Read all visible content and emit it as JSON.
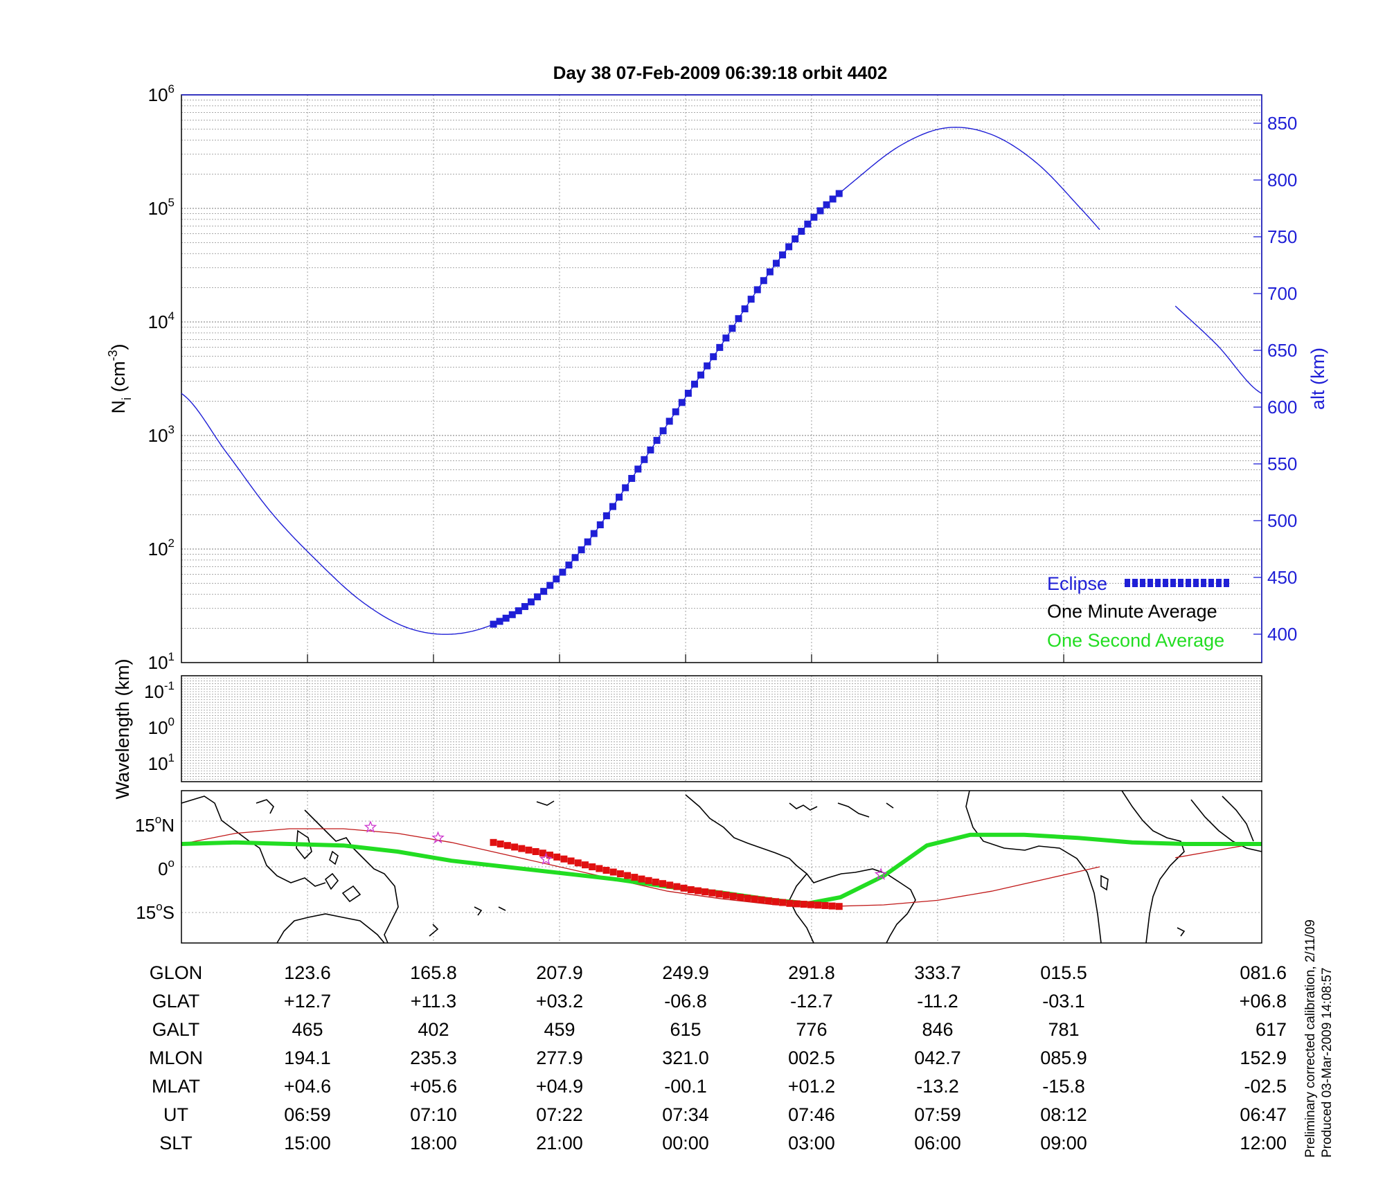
{
  "chart_data": [
    {
      "type": "line",
      "title": "Day 38  07-Feb-2009 06:39:18   orbit 4402",
      "ylabel_left": "N",
      "ylabel_left_sub": "i",
      "ylabel_left_unit": "(cm",
      "ylabel_left_unit_exp": "-3",
      "ylabel_left_unit_close": ")",
      "ylabel_right": "alt (km)",
      "y_left_scale": "log",
      "ylim_left": [
        10,
        1000000
      ],
      "y_left_ticks": [
        {
          "base": "10",
          "exp": "1"
        },
        {
          "base": "10",
          "exp": "2"
        },
        {
          "base": "10",
          "exp": "3"
        },
        {
          "base": "10",
          "exp": "4"
        },
        {
          "base": "10",
          "exp": "5"
        },
        {
          "base": "10",
          "exp": "6"
        }
      ],
      "ylim_right": [
        375,
        875
      ],
      "y_right_ticks": [
        "400",
        "450",
        "500",
        "550",
        "600",
        "650",
        "700",
        "750",
        "800",
        "850"
      ],
      "grid": true,
      "legend_position": "bottom-right",
      "legend": [
        {
          "label": "Eclipse",
          "color": "#1f1fd6"
        },
        {
          "label": "One Minute Average",
          "color": "#000000"
        },
        {
          "label": "One Second Average",
          "color": "#22dd22"
        }
      ],
      "series": [
        {
          "name": "alt",
          "color": "#1f1fd6",
          "x_frac": [
            0.0,
            0.0417,
            0.0833,
            0.125,
            0.1667,
            0.2083,
            0.25,
            0.2917,
            0.3333,
            0.375,
            0.4167,
            0.4583,
            0.5,
            0.5417,
            0.5833,
            0.625,
            0.6667,
            0.7083,
            0.75,
            0.7917,
            0.8333,
            0.875,
            0.9167,
            0.9583,
            1.0
          ],
          "y": [
            612,
            560,
            507,
            465,
            429,
            406,
            400,
            410,
            436,
            480,
            537,
            597,
            655,
            715,
            765,
            801,
            831,
            846,
            840,
            815,
            774,
            730,
            692,
            655,
            612
          ],
          "gap": [
            0.85,
            0.92
          ]
        }
      ],
      "eclipse_range_frac": [
        0.2888,
        0.6088
      ]
    },
    {
      "type": "heatmap",
      "ylabel": "Wavelength (km)",
      "y_ticks": [
        {
          "base": "10",
          "exp": "-1"
        },
        {
          "base": "10",
          "exp": "0"
        },
        {
          "base": "10",
          "exp": "1"
        }
      ]
    },
    {
      "type": "map",
      "y_ticks": [
        {
          "value": "15",
          "deg": "o",
          "hemi": "N"
        },
        {
          "value": "0",
          "deg": "o",
          "hemi": ""
        },
        {
          "value": "15",
          "deg": "o",
          "hemi": "S"
        }
      ],
      "ylim": [
        -25,
        25
      ],
      "one_second_track": {
        "x_frac": [
          0.0,
          0.05,
          0.1,
          0.15,
          0.2,
          0.25,
          0.3,
          0.35,
          0.4,
          0.45,
          0.5,
          0.55,
          0.58,
          0.61,
          0.65,
          0.69,
          0.73,
          0.78,
          0.83,
          0.88,
          0.93,
          0.97,
          1.0
        ],
        "lat": [
          7.5,
          8,
          7.5,
          7,
          5,
          2,
          0,
          -2,
          -4,
          -6.5,
          -8.5,
          -11,
          -12,
          -10,
          -3,
          7,
          10.5,
          10.5,
          9.5,
          8,
          7.5,
          7.5,
          7.5
        ]
      },
      "orbit_track": {
        "x_frac": [
          0.0,
          0.05,
          0.1,
          0.15,
          0.2,
          0.25,
          0.3,
          0.35,
          0.4,
          0.45,
          0.5,
          0.55,
          0.6,
          0.65,
          0.7,
          0.75,
          0.8,
          0.85,
          0.92,
          1.0
        ],
        "lat": [
          7.5,
          11,
          12.5,
          12.5,
          11,
          8,
          4,
          0,
          -4,
          -8,
          -10.5,
          -12.5,
          -13,
          -12.5,
          -11,
          -8,
          -4,
          0,
          3,
          8
        ]
      },
      "eclipse_track": {
        "x_frac_start": 0.2888,
        "x_frac_end": 0.6088,
        "lat": [
          8,
          4.5,
          0,
          -4,
          -7.5,
          -10,
          -12,
          -13
        ]
      },
      "stars": [
        {
          "x_frac": 0.175,
          "lat": 13
        },
        {
          "x_frac": 0.2375,
          "lat": 9.5
        },
        {
          "x_frac": 0.3375,
          "lat": 2.5
        },
        {
          "x_frac": 0.6475,
          "lat": -2.5
        }
      ]
    }
  ],
  "table": {
    "x_frac": [
      0.1167,
      0.2333,
      0.35,
      0.4667,
      0.5833,
      0.7,
      0.8167,
      1.0
    ],
    "rows": [
      {
        "label": "GLON",
        "values": [
          "123.6",
          "165.8",
          "207.9",
          "249.9",
          "291.8",
          "333.7",
          "015.5",
          "081.6"
        ]
      },
      {
        "label": "GLAT",
        "values": [
          "+12.7",
          "+11.3",
          "+03.2",
          "-06.8",
          "-12.7",
          "-11.2",
          "-03.1",
          "+06.8"
        ]
      },
      {
        "label": "GALT",
        "values": [
          "465",
          "402",
          "459",
          "615",
          "776",
          "846",
          "781",
          "617"
        ]
      },
      {
        "label": "MLON",
        "values": [
          "194.1",
          "235.3",
          "277.9",
          "321.0",
          "002.5",
          "042.7",
          "085.9",
          "152.9"
        ]
      },
      {
        "label": "MLAT",
        "values": [
          "+04.6",
          "+05.6",
          "+04.9",
          "-00.1",
          "+01.2",
          "-13.2",
          "-15.8",
          "-02.5"
        ]
      },
      {
        "label": "UT",
        "values": [
          "06:59",
          "07:10",
          "07:22",
          "07:34",
          "07:46",
          "07:59",
          "08:12",
          "06:47"
        ]
      },
      {
        "label": "SLT",
        "values": [
          "15:00",
          "18:00",
          "21:00",
          "00:00",
          "03:00",
          "06:00",
          "09:00",
          "12:00"
        ]
      }
    ]
  },
  "footnote": {
    "line1": "Preliminary corrected calibration, 2/11/09",
    "line2": "Produced 03-Mar-2009 14:08:57"
  },
  "colors": {
    "axis": "#000000",
    "right_axis": "#1f1fd6",
    "eclipse": "#1f1fd6",
    "eclipse_map": "#e01010",
    "one_second": "#22dd22",
    "orbit_line": "#c01818",
    "star": "#cc33cc",
    "grid": "#888888"
  }
}
